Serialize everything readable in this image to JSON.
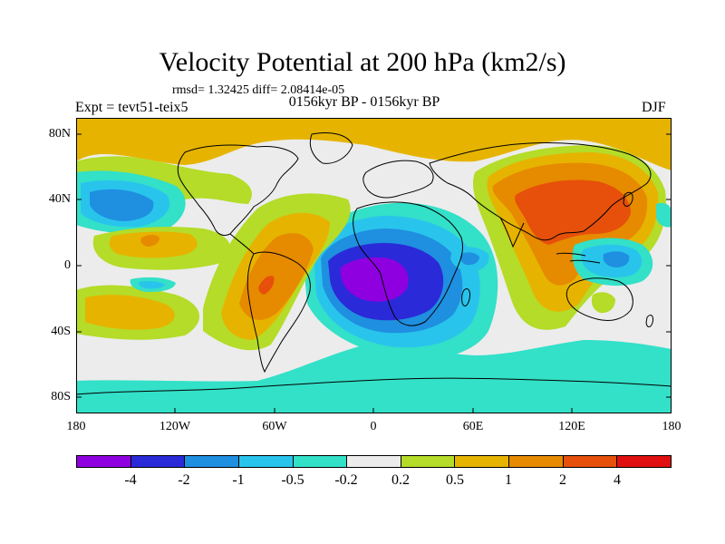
{
  "title": "Velocity Potential at 200 hPa (km2/s)",
  "stats": "rmsd= 1.32425 diff= 2.08414e-05",
  "experiment": "Expt = tevt51-teix5",
  "period": "0156kyr BP - 0156kyr BP",
  "season": "DJF",
  "map": {
    "type": "filled-contour",
    "variable": "200 hPa velocity potential difference",
    "units": "km2/s",
    "projection": "cylindrical equidistant",
    "lon_range": [
      -180,
      180
    ],
    "lat_range": [
      -90,
      90
    ],
    "y_ticks": [
      "80N",
      "40N",
      "0",
      "40S",
      "80S"
    ],
    "x_ticks": [
      "180",
      "120W",
      "60W",
      "0",
      "60E",
      "120E",
      "180"
    ]
  },
  "colorbar": {
    "colors": [
      "#8f00e0",
      "#2a2ad8",
      "#1f8fe0",
      "#29c4ec",
      "#33e0c8",
      "#ececec",
      "#b4dc28",
      "#e6b400",
      "#e68a00",
      "#e6500a",
      "#e01010"
    ],
    "labels": [
      "-4",
      "-2",
      "-1",
      "-0.5",
      "-0.2",
      "0.2",
      "0.5",
      "1",
      "2",
      "4"
    ],
    "levels": [
      -4,
      -2,
      -1,
      -0.5,
      -0.2,
      0.2,
      0.5,
      1,
      2,
      4
    ]
  }
}
